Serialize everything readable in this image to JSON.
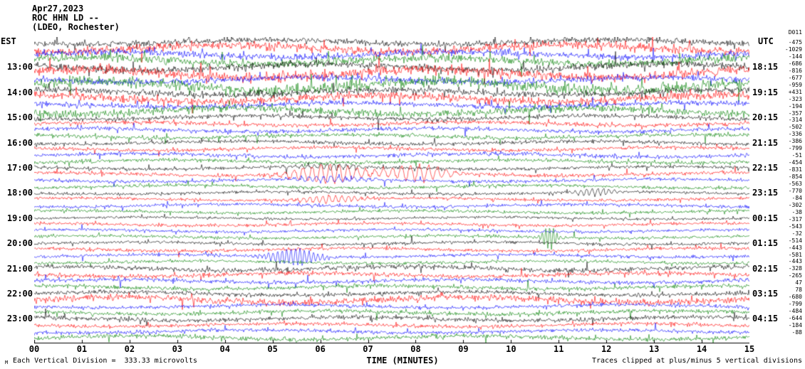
{
  "chart_data": {
    "type": "line",
    "title": "ROC HHN LD helicorder seismogram",
    "header": {
      "date": "Apr27,2023",
      "station": "ROC HHN LD --",
      "location": "(LDEO, Rochester)"
    },
    "axes": {
      "left_label": "EST",
      "right_label": "UTC",
      "xlabel": "TIME (MINUTES)",
      "xlim": [
        0,
        15
      ],
      "x_ticks": [
        "00",
        "01",
        "02",
        "03",
        "04",
        "05",
        "06",
        "07",
        "08",
        "09",
        "10",
        "11",
        "12",
        "13",
        "14",
        "15"
      ],
      "grid": false
    },
    "left_times": {
      "labels": [
        "13:00",
        "14:00",
        "15:00",
        "16:00",
        "17:00",
        "18:00",
        "19:00",
        "20:00",
        "21:00",
        "22:00",
        "23:00"
      ],
      "first_row": 4,
      "row_step": 4
    },
    "right_times": {
      "labels": [
        "18:15",
        "19:15",
        "20:15",
        "21:15",
        "22:15",
        "23:15",
        "00:15",
        "01:15",
        "02:15",
        "03:15",
        "04:15"
      ],
      "first_row": 4,
      "row_step": 4
    },
    "right_column": {
      "header": "D011",
      "values": [
        "-475",
        "-1029",
        "-144",
        "-686",
        "-816",
        "-677",
        "-959",
        "+431",
        "-323",
        "-194",
        "-357",
        "-314",
        "-502",
        "-336",
        "-386",
        "-799",
        "-51",
        "-454",
        "-831",
        "-854",
        "-563",
        "-770",
        "-84",
        "-302",
        "-38",
        "-317",
        "-543",
        "-32",
        "-514",
        "-443",
        "-581",
        "-443",
        "-328",
        "-265",
        "47",
        "78",
        "-680",
        "-799",
        "-484",
        "-644",
        "-184",
        "-88"
      ]
    },
    "footer": {
      "left": "Each Vertical Division =  333.33 microvolts",
      "center": "TIME (MINUTES)",
      "right": "Traces clipped at plus/minus 5 vertical divisions",
      "corner": "M"
    },
    "scale": {
      "microvolts_per_division": 333.33,
      "clip_divisions": 5
    },
    "trace_colors": [
      "#000000",
      "#ff0000",
      "#0000ff",
      "#008000"
    ],
    "rows": 48,
    "row_amplitudes": [
      1.6,
      2.4,
      1.8,
      2.2,
      2.0,
      2.6,
      1.7,
      3.0,
      1.8,
      2.2,
      1.4,
      2.0,
      1.2,
      1.1,
      1.2,
      1.1,
      1.0,
      1.0,
      1.1,
      1.0,
      0.9,
      1.0,
      0.9,
      0.9,
      0.8,
      0.8,
      0.9,
      0.8,
      0.7,
      0.8,
      0.8,
      0.8,
      0.8,
      0.9,
      0.9,
      0.8,
      1.3,
      1.2,
      1.1,
      1.1,
      1.1,
      1.8,
      1.0,
      1.1,
      1.2,
      1.0,
      1.0,
      1.2
    ],
    "events": [
      {
        "row": 21,
        "minute": 6.15,
        "amp": 13,
        "width": 0.55,
        "freq": 0.5
      },
      {
        "row": 21,
        "minute": 8.05,
        "amp": 11,
        "width": 0.5,
        "freq": 0.5
      },
      {
        "row": 20,
        "minute": 6.2,
        "amp": 4,
        "width": 0.5,
        "freq": 0.7
      },
      {
        "row": 22,
        "minute": 6.2,
        "amp": 4,
        "width": 0.6,
        "freq": 0.6
      },
      {
        "row": 25,
        "minute": 6.2,
        "amp": 5,
        "width": 0.5,
        "freq": 0.7
      },
      {
        "row": 24,
        "minute": 11.75,
        "amp": 5,
        "width": 0.35,
        "freq": 0.8
      },
      {
        "row": 31,
        "minute": 10.8,
        "amp": 16,
        "width": 0.12,
        "freq": 1.2
      },
      {
        "row": 34,
        "minute": 5.45,
        "amp": 11,
        "width": 0.4,
        "freq": 1.0
      }
    ]
  }
}
